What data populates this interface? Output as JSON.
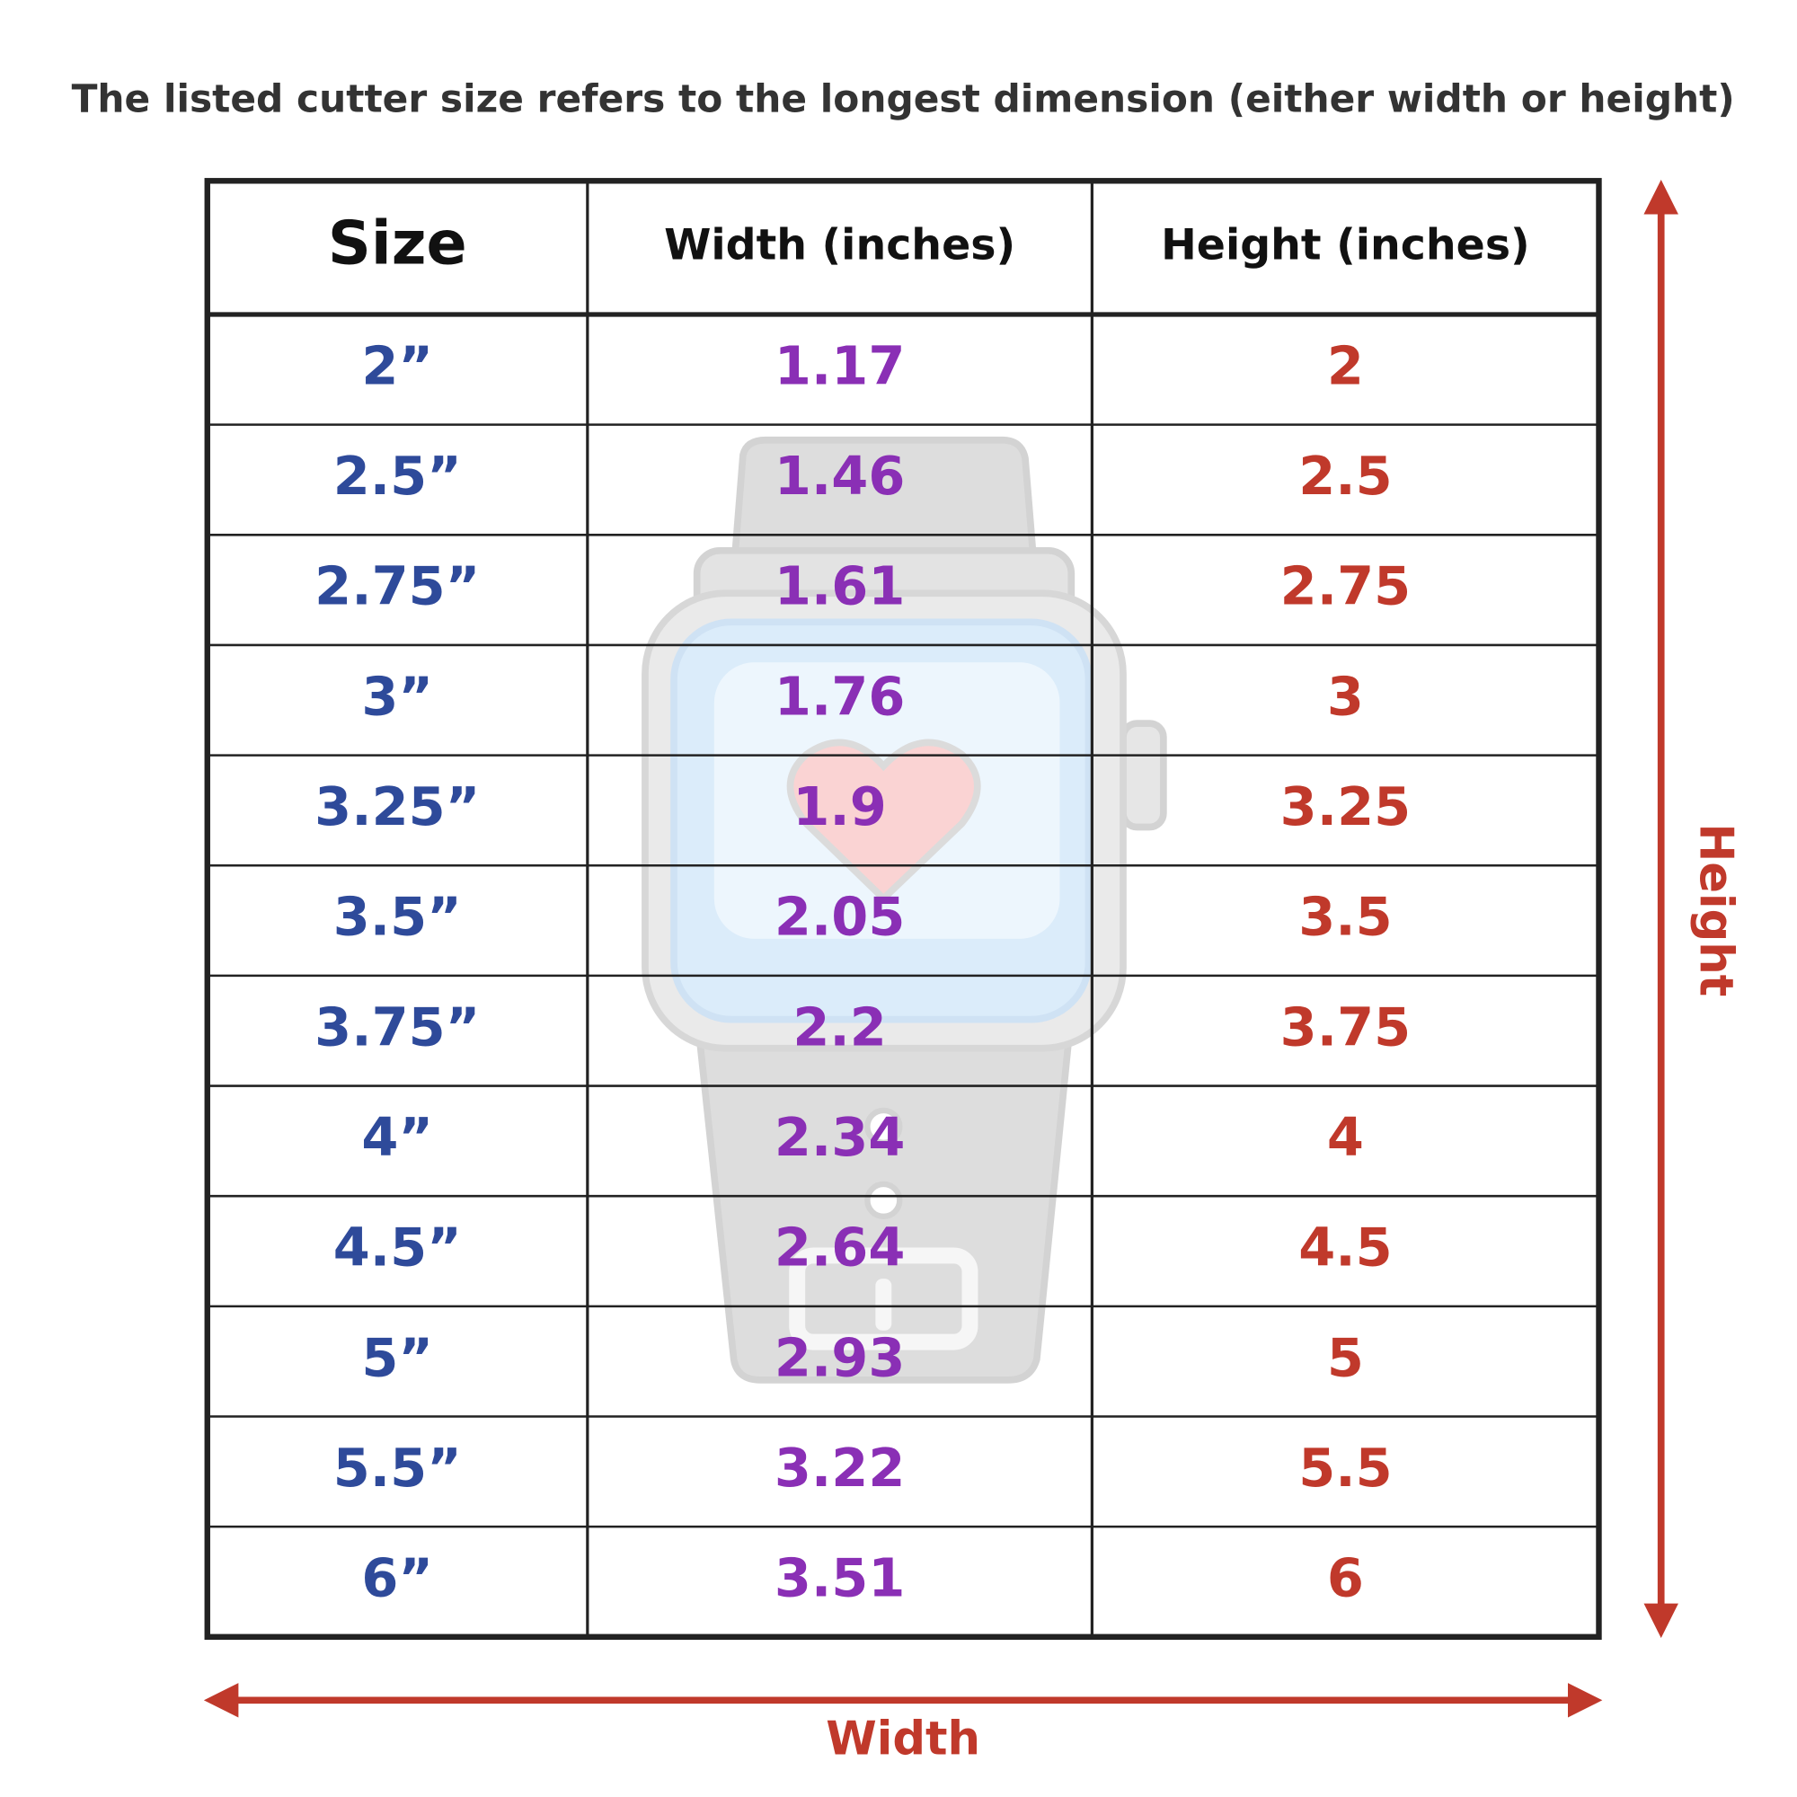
{
  "header": {
    "note": "The listed cutter size refers to the longest dimension (either width or height)"
  },
  "table": {
    "columns": [
      "Size",
      "Width (inches)",
      "Height (inches)"
    ],
    "rows": [
      [
        "2”",
        "1.17",
        "2"
      ],
      [
        "2.5”",
        "1.46",
        "2.5"
      ],
      [
        "2.75”",
        "1.61",
        "2.75"
      ],
      [
        "3”",
        "1.76",
        "3"
      ],
      [
        "3.25”",
        "1.9",
        "3.25"
      ],
      [
        "3.5”",
        "2.05",
        "3.5"
      ],
      [
        "3.75”",
        "2.2",
        "3.75"
      ],
      [
        "4”",
        "2.34",
        "4"
      ],
      [
        "4.5”",
        "2.64",
        "4.5"
      ],
      [
        "5”",
        "2.93",
        "5"
      ],
      [
        "5.5”",
        "3.22",
        "5.5"
      ],
      [
        "6”",
        "3.51",
        "6"
      ]
    ]
  },
  "dimensions": {
    "height_label": "Height",
    "width_label": "Width"
  }
}
